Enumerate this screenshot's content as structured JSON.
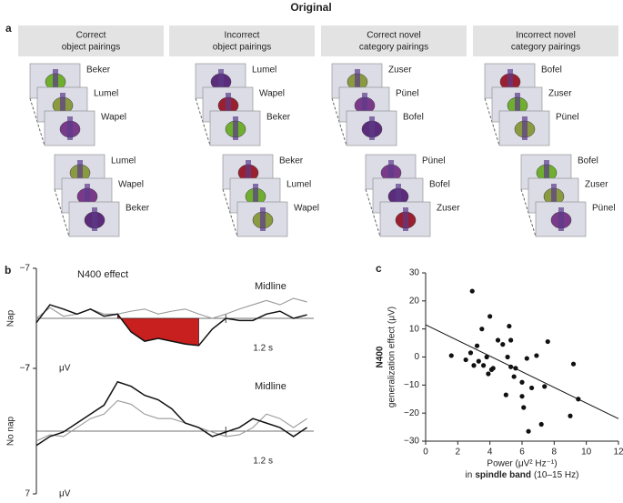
{
  "title": "Original",
  "panel_a": {
    "label": "a",
    "columns": [
      {
        "header": [
          "Correct",
          "object pairings"
        ],
        "groups": [
          [
            "Beker",
            "Lumel",
            "Wapel"
          ],
          [
            "Lumel",
            "Wapel",
            "Beker"
          ]
        ]
      },
      {
        "header": [
          "Incorrect",
          "object pairings"
        ],
        "groups": [
          [
            "Lumel",
            "Wapel",
            "Beker"
          ],
          [
            "Beker",
            "Lumel",
            "Wapel"
          ]
        ]
      },
      {
        "header": [
          "Correct novel",
          "category pairings"
        ],
        "groups": [
          [
            "Zuser",
            "Pünel",
            "Bofel"
          ],
          [
            "Pünel",
            "Bofel",
            "Zuser"
          ]
        ]
      },
      {
        "header": [
          "Incorrect novel",
          "category pairings"
        ],
        "groups": [
          [
            "Bofel",
            "Zuser",
            "Pünel"
          ],
          [
            "Bofel",
            "Zuser",
            "Pünel"
          ]
        ]
      }
    ]
  },
  "chart_data": [
    {
      "type": "line",
      "panel_label": "b",
      "row_label": "Nap",
      "annotations": [
        "N400 effect",
        "Midline"
      ],
      "unit": "μV",
      "x": [
        -0.2,
        -0.1,
        0,
        0.1,
        0.2,
        0.3,
        0.4,
        0.5,
        0.6,
        0.7,
        0.8,
        0.9,
        1.0,
        1.1,
        1.2,
        1.3,
        1.4,
        1.5,
        1.6,
        1.7,
        1.8
      ],
      "series": [
        {
          "color": "#111111",
          "values": [
            0.6,
            -1.9,
            -1.3,
            -0.6,
            -1.3,
            -0.3,
            -0.6,
            1.9,
            3.2,
            2.8,
            3.2,
            3.6,
            3.8,
            1.5,
            0,
            0.3,
            0.3,
            -0.6,
            -1,
            0,
            -0.5
          ]
        },
        {
          "color": "#999999",
          "values": [
            0,
            -1.5,
            -0.3,
            -0.6,
            -1.3,
            -0.6,
            -0.6,
            -1,
            -1.3,
            -0.6,
            -1,
            -1.3,
            -0.6,
            0,
            -0.6,
            -1.3,
            -1.9,
            -2.5,
            -1.9,
            -2.8,
            -2.3
          ]
        }
      ],
      "shade": {
        "xlim": [
          0.4,
          1.0
        ],
        "color": "#c8201e"
      },
      "xlim": [
        -0.2,
        1.85
      ],
      "xticks": [
        {
          "value": 1.2,
          "label": "1.2 s"
        }
      ],
      "ylim": [
        -7,
        7
      ],
      "y_inverted": true,
      "yticks": [
        {
          "value": -7,
          "label": "−7"
        },
        7
      ]
    },
    {
      "type": "line",
      "row_label": "No nap",
      "annotations": [
        "Midline"
      ],
      "unit": "μV",
      "x": [
        -0.2,
        -0.1,
        0,
        0.1,
        0.2,
        0.3,
        0.4,
        0.5,
        0.6,
        0.7,
        0.8,
        0.9,
        1.0,
        1.1,
        1.2,
        1.3,
        1.4,
        1.5,
        1.6,
        1.7,
        1.8
      ],
      "series": [
        {
          "color": "#111111",
          "values": [
            1.6,
            0.6,
            0.1,
            -0.9,
            -1.9,
            -2.9,
            -5.5,
            -5,
            -4,
            -3.5,
            -2.5,
            -0.9,
            -0.4,
            0.6,
            0.1,
            -0.4,
            -1.4,
            -0.9,
            -0.4,
            0.6,
            -0.4
          ]
        },
        {
          "color": "#999999",
          "values": [
            1.1,
            0.4,
            0.6,
            -0.4,
            -1.4,
            -1.9,
            -3.4,
            -3,
            -1.9,
            -1.4,
            -1.4,
            -0.9,
            -0.4,
            0.1,
            0.6,
            0.4,
            -0.4,
            -1.9,
            -1.4,
            -0.4,
            -1.4
          ]
        }
      ],
      "xlim": [
        -0.2,
        1.85
      ],
      "xticks": [
        {
          "value": 1.2,
          "label": "1.2 s"
        }
      ],
      "ylim": [
        -7,
        7
      ],
      "y_inverted": true,
      "yticks": [
        {
          "value": -7,
          "label": "−7"
        },
        7
      ]
    },
    {
      "type": "scatter",
      "panel_label": "c",
      "color": "#111111",
      "ylabel_bold": "N400",
      "ylabel": "generalization effect (μV)",
      "xlabel": "Power (μV² Hz⁻¹)",
      "xlabel_parts": [
        "in",
        "spindle band",
        "(10–15 Hz)"
      ],
      "x": [
        1.6,
        2.5,
        2.8,
        2.9,
        3.0,
        3.2,
        3.3,
        3.5,
        3.6,
        3.8,
        3.9,
        4.0,
        4.1,
        4.2,
        4.5,
        4.8,
        5.0,
        5.1,
        5.2,
        5.3,
        5.3,
        5.5,
        5.6,
        6.0,
        6.1,
        6.3,
        6.4,
        6.6,
        6.9,
        7.2,
        7.4,
        7.6,
        9.0,
        9.2,
        9.5,
        6.0
      ],
      "values": [
        0.5,
        -1,
        1.5,
        23.5,
        -3,
        4,
        -1.5,
        10,
        -3,
        0,
        -6,
        14.5,
        -4.5,
        -4,
        6,
        4.5,
        -13.5,
        0,
        11,
        -3.5,
        6,
        -7,
        -4,
        -9,
        -18,
        -0.5,
        -26.5,
        -11,
        0.5,
        -24,
        -10.5,
        5.5,
        -21,
        -2.5,
        -15,
        -14
      ],
      "fit": {
        "x": [
          0,
          12
        ],
        "values": [
          11.5,
          -22
        ]
      },
      "xlim": [
        0,
        12
      ],
      "xticks": [
        0,
        2,
        4,
        6,
        8,
        10,
        12
      ],
      "ylim": [
        -30,
        30
      ],
      "yticks": [
        {
          "value": -30,
          "label": "−30"
        },
        {
          "value": -20,
          "label": "−20"
        },
        {
          "value": -10,
          "label": "−10"
        },
        0,
        10,
        20,
        30
      ]
    }
  ]
}
